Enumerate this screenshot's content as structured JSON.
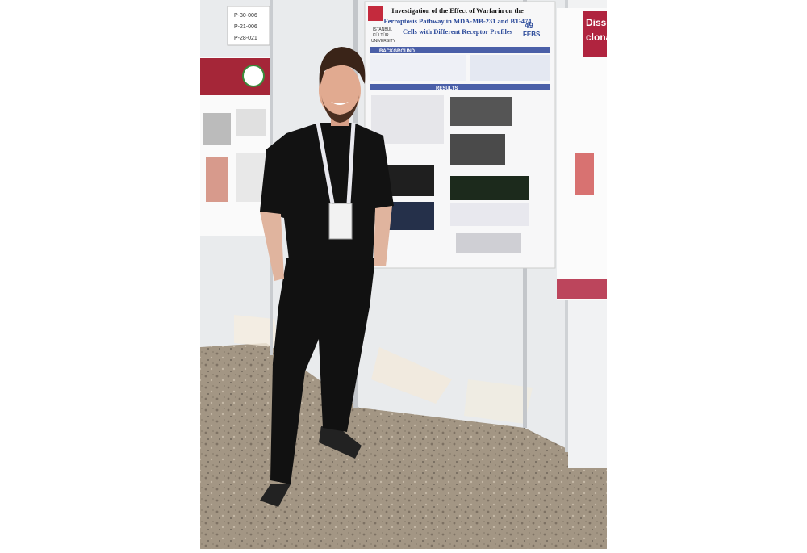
{
  "poster": {
    "title_lines": [
      "Investigation of the Effect of Warfarin on the",
      "Ferroptosis Pathway in MDA-MB-231 and BT-474",
      "Cells with Different Receptor Profiles"
    ],
    "institution_lines": [
      "İSTANBUL",
      "KÜLTÜR",
      "UNIVERSITY"
    ],
    "conference": [
      "49",
      "FEBS"
    ],
    "sections": [
      "BACKGROUND",
      "RESULTS"
    ]
  },
  "board_numbers": [
    "P-30-006",
    "P-21-006",
    "P-28-021"
  ],
  "right_poster": {
    "title_lines": [
      "Disse",
      "clona"
    ]
  }
}
